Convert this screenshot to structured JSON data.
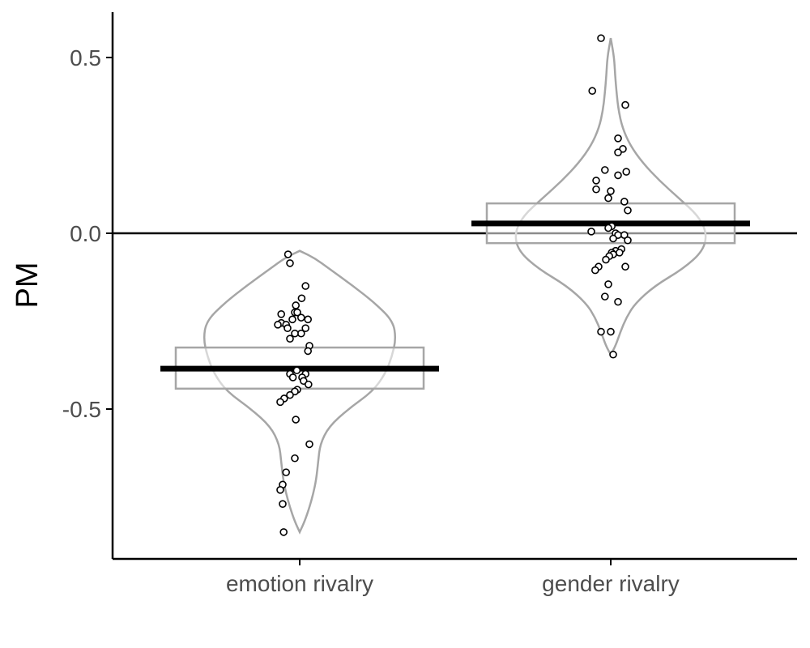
{
  "chart_data": {
    "type": "violin",
    "title": "",
    "xlabel": "",
    "ylabel": "PM",
    "ylim": [
      -0.92,
      0.63
    ],
    "yticks": [
      0.5,
      0.0,
      -0.5
    ],
    "ytick_labels": [
      "0.5",
      "0.0",
      "-0.5"
    ],
    "reference_line": 0.0,
    "grid": false,
    "legend": "none",
    "colors": {
      "outline": "#a6a6a6",
      "mean": "#000000",
      "point_fill": "#ffffff",
      "point_stroke": "#000000"
    },
    "categories": [
      "emotion rivalry",
      "gender rivalry"
    ],
    "groups": [
      {
        "category": "emotion rivalry",
        "mean": -0.385,
        "ci": [
          -0.442,
          -0.325
        ],
        "points": [
          [
            -0.24,
            -0.06
          ],
          [
            -0.2,
            -0.085
          ],
          [
            0.12,
            -0.15
          ],
          [
            0.04,
            -0.185
          ],
          [
            -0.08,
            -0.205
          ],
          [
            -0.38,
            -0.23
          ],
          [
            -0.1,
            -0.225
          ],
          [
            -0.05,
            -0.225
          ],
          [
            -0.15,
            -0.245
          ],
          [
            0.03,
            -0.24
          ],
          [
            0.17,
            -0.245
          ],
          [
            -0.38,
            -0.255
          ],
          [
            -0.45,
            -0.26
          ],
          [
            -0.28,
            -0.26
          ],
          [
            -0.25,
            -0.27
          ],
          [
            0.12,
            -0.27
          ],
          [
            0.03,
            -0.285
          ],
          [
            -0.1,
            -0.285
          ],
          [
            -0.2,
            -0.3
          ],
          [
            0.2,
            -0.32
          ],
          [
            0.17,
            -0.335
          ],
          [
            -0.06,
            -0.39
          ],
          [
            -0.2,
            -0.4
          ],
          [
            0.12,
            -0.4
          ],
          [
            0.05,
            -0.41
          ],
          [
            -0.14,
            -0.41
          ],
          [
            0.08,
            -0.42
          ],
          [
            0.18,
            -0.43
          ],
          [
            -0.05,
            -0.445
          ],
          [
            -0.1,
            -0.45
          ],
          [
            -0.2,
            -0.46
          ],
          [
            -0.32,
            -0.47
          ],
          [
            -0.4,
            -0.48
          ],
          [
            -0.08,
            -0.53
          ],
          [
            0.2,
            -0.6
          ],
          [
            -0.1,
            -0.64
          ],
          [
            -0.28,
            -0.68
          ],
          [
            -0.35,
            -0.715
          ],
          [
            -0.4,
            -0.73
          ],
          [
            -0.35,
            -0.77
          ],
          [
            -0.33,
            -0.85
          ]
        ],
        "density": [
          [
            -0.85,
            0.0
          ],
          [
            -0.82,
            0.05
          ],
          [
            -0.78,
            0.1
          ],
          [
            -0.74,
            0.14
          ],
          [
            -0.7,
            0.17
          ],
          [
            -0.65,
            0.19
          ],
          [
            -0.6,
            0.21
          ],
          [
            -0.55,
            0.3
          ],
          [
            -0.5,
            0.5
          ],
          [
            -0.45,
            0.75
          ],
          [
            -0.4,
            0.88
          ],
          [
            -0.35,
            0.95
          ],
          [
            -0.3,
            0.99
          ],
          [
            -0.25,
            0.96
          ],
          [
            -0.2,
            0.78
          ],
          [
            -0.15,
            0.55
          ],
          [
            -0.1,
            0.3
          ],
          [
            -0.07,
            0.15
          ],
          [
            -0.05,
            0.0
          ]
        ]
      },
      {
        "category": "gender rivalry",
        "mean": 0.028,
        "ci": [
          -0.028,
          0.085
        ],
        "points": [
          [
            -0.2,
            0.555
          ],
          [
            -0.38,
            0.405
          ],
          [
            0.3,
            0.365
          ],
          [
            0.15,
            0.27
          ],
          [
            0.25,
            0.24
          ],
          [
            0.15,
            0.23
          ],
          [
            0.32,
            0.175
          ],
          [
            -0.12,
            0.18
          ],
          [
            0.15,
            0.165
          ],
          [
            -0.3,
            0.15
          ],
          [
            -0.3,
            0.125
          ],
          [
            0.0,
            0.12
          ],
          [
            -0.05,
            0.1
          ],
          [
            0.28,
            0.09
          ],
          [
            0.35,
            0.065
          ],
          [
            0.02,
            0.02
          ],
          [
            -0.05,
            0.015
          ],
          [
            -0.4,
            0.005
          ],
          [
            0.1,
            0.0
          ],
          [
            0.15,
            -0.005
          ],
          [
            0.28,
            -0.005
          ],
          [
            0.05,
            -0.015
          ],
          [
            0.35,
            -0.02
          ],
          [
            0.22,
            -0.045
          ],
          [
            0.1,
            -0.05
          ],
          [
            0.02,
            -0.055
          ],
          [
            0.18,
            -0.055
          ],
          [
            0.05,
            -0.06
          ],
          [
            -0.03,
            -0.065
          ],
          [
            -0.1,
            -0.075
          ],
          [
            -0.25,
            -0.095
          ],
          [
            0.3,
            -0.095
          ],
          [
            -0.32,
            -0.105
          ],
          [
            -0.05,
            -0.145
          ],
          [
            -0.12,
            -0.18
          ],
          [
            0.15,
            -0.195
          ],
          [
            0.0,
            -0.28
          ],
          [
            -0.2,
            -0.28
          ],
          [
            0.05,
            -0.345
          ]
        ],
        "density": [
          [
            -0.345,
            0.0
          ],
          [
            -0.32,
            0.05
          ],
          [
            -0.28,
            0.1
          ],
          [
            -0.24,
            0.16
          ],
          [
            -0.2,
            0.25
          ],
          [
            -0.15,
            0.45
          ],
          [
            -0.1,
            0.75
          ],
          [
            -0.05,
            0.95
          ],
          [
            0.0,
            0.99
          ],
          [
            0.05,
            0.9
          ],
          [
            0.1,
            0.7
          ],
          [
            0.15,
            0.5
          ],
          [
            0.2,
            0.33
          ],
          [
            0.25,
            0.2
          ],
          [
            0.3,
            0.12
          ],
          [
            0.35,
            0.08
          ],
          [
            0.4,
            0.06
          ],
          [
            0.45,
            0.045
          ],
          [
            0.5,
            0.035
          ],
          [
            0.555,
            0.0
          ]
        ]
      }
    ]
  }
}
